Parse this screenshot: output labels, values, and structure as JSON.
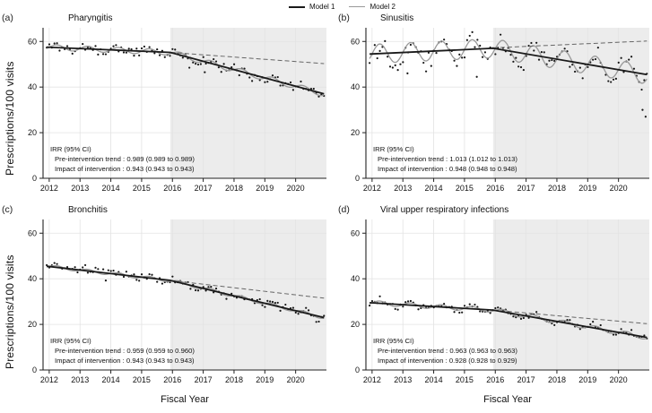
{
  "labels": {
    "y_axis": "Prescriptions/100 visits",
    "x_axis": "Fiscal Year"
  },
  "legend": {
    "items": [
      {
        "label": "Model 1",
        "color": "#1a1a1a",
        "thickness": 2
      },
      {
        "label": "Model 2",
        "color": "#999999",
        "thickness": 1.5
      }
    ]
  },
  "style": {
    "shade": "#ececec",
    "grid": "#e3e3e3",
    "axis": "#222222",
    "dot": "#161616",
    "model1": "#1a1a1a",
    "model2": "#999999",
    "dashed": "#666666"
  },
  "panels": [
    {
      "letter": "(a)",
      "title": "Pharyngitis",
      "irr_header": "IRR (95% CI)",
      "trend_line": "Pre-intervention trend : 0.989 (0.989 to 0.989)",
      "impact_line": "Impact of intervention : 0.943 (0.943 to 0.943)"
    },
    {
      "letter": "(b)",
      "title": "Sinusitis",
      "irr_header": "IRR (95% CI)",
      "trend_line": "Pre-intervention trend : 1.013 (1.012 to 1.013)",
      "impact_line": "Impact of intervention : 0.948 (0.948 to 0.948)"
    },
    {
      "letter": "(c)",
      "title": "Bronchitis",
      "irr_header": "IRR (95% CI)",
      "trend_line": "Pre-intervention trend : 0.959 (0.959 to 0.960)",
      "impact_line": "Impact of intervention : 0.943 (0.943 to 0.943)"
    },
    {
      "letter": "(d)",
      "title": "Viral upper respiratory infections",
      "irr_header": "IRR (95% CI)",
      "trend_line": "Pre-intervention trend : 0.963 (0.963 to 0.963)",
      "impact_line": "Impact of intervention : 0.928 (0.928 to 0.929)"
    }
  ],
  "chart_data": [
    {
      "type": "scatter",
      "title": "Pharyngitis",
      "xlabel": "Fiscal Year",
      "ylabel": "Prescriptions/100 visits",
      "x_ticks": [
        2012,
        2013,
        2014,
        2015,
        2016,
        2017,
        2018,
        2019,
        2020
      ],
      "y_ticks": [
        0,
        20,
        40,
        60
      ],
      "x_range": [
        2011.8,
        2021.0
      ],
      "ylim": [
        0,
        66
      ],
      "intervention_start": 2015.93,
      "series": {
        "model1_trend_points": [
          [
            2011.92,
            57.5
          ],
          [
            2015.93,
            55.2
          ],
          [
            2020.92,
            37.0
          ]
        ],
        "counterfactual_points": [
          [
            2015.93,
            55.2
          ],
          [
            2020.92,
            50.3
          ]
        ],
        "seasonal_amplitude": 1.2,
        "scatter_noise_sd": 1.3,
        "scatter_seed": 11,
        "scatter_outliers": [
          [
            2016.55,
            48.5
          ],
          [
            2017.05,
            46.5
          ]
        ]
      }
    },
    {
      "type": "scatter",
      "title": "Sinusitis",
      "xlabel": "Fiscal Year",
      "ylabel": "Prescriptions/100 visits",
      "x_ticks": [
        2012,
        2013,
        2014,
        2015,
        2016,
        2017,
        2018,
        2019,
        2020
      ],
      "y_ticks": [
        0,
        20,
        40,
        60
      ],
      "x_range": [
        2011.8,
        2021.0
      ],
      "ylim": [
        0,
        66
      ],
      "intervention_start": 2015.93,
      "series": {
        "model1_trend_points": [
          [
            2011.92,
            54.5
          ],
          [
            2015.93,
            57.0
          ],
          [
            2020.92,
            45.5
          ]
        ],
        "counterfactual_points": [
          [
            2015.93,
            57.2
          ],
          [
            2020.92,
            60.2
          ]
        ],
        "seasonal_amplitude": 4.2,
        "scatter_noise_sd": 2.3,
        "scatter_seed": 22,
        "scatter_outliers": [
          [
            2013.15,
            46.0
          ],
          [
            2015.4,
            44.5
          ],
          [
            2020.78,
            30.0
          ],
          [
            2020.88,
            27.0
          ]
        ]
      }
    },
    {
      "type": "scatter",
      "title": "Bronchitis",
      "xlabel": "Fiscal Year",
      "ylabel": "Prescriptions/100 visits",
      "x_ticks": [
        2012,
        2013,
        2014,
        2015,
        2016,
        2017,
        2018,
        2019,
        2020
      ],
      "y_ticks": [
        0,
        20,
        40,
        60
      ],
      "x_range": [
        2011.8,
        2021.0
      ],
      "ylim": [
        0,
        66
      ],
      "intervention_start": 2015.93,
      "series": {
        "model1_trend_points": [
          [
            2011.92,
            45.5
          ],
          [
            2015.93,
            39.3
          ],
          [
            2020.92,
            23.0
          ]
        ],
        "counterfactual_points": [
          [
            2015.93,
            39.3
          ],
          [
            2020.92,
            31.5
          ]
        ],
        "seasonal_amplitude": 0.7,
        "scatter_noise_sd": 1.0,
        "scatter_seed": 33,
        "scatter_outliers": []
      }
    },
    {
      "type": "scatter",
      "title": "Viral upper respiratory infections",
      "xlabel": "Fiscal Year",
      "ylabel": "Prescriptions/100 visits",
      "x_ticks": [
        2012,
        2013,
        2014,
        2015,
        2016,
        2017,
        2018,
        2019,
        2020
      ],
      "y_ticks": [
        0,
        20,
        40,
        60
      ],
      "x_range": [
        2011.8,
        2021.0
      ],
      "ylim": [
        0,
        66
      ],
      "intervention_start": 2015.93,
      "series": {
        "model1_trend_points": [
          [
            2011.92,
            29.5
          ],
          [
            2015.93,
            26.3
          ],
          [
            2020.92,
            14.3
          ]
        ],
        "counterfactual_points": [
          [
            2015.93,
            26.3
          ],
          [
            2020.92,
            20.3
          ]
        ],
        "seasonal_amplitude": 1.0,
        "scatter_noise_sd": 0.9,
        "scatter_seed": 44,
        "scatter_outliers": []
      }
    }
  ]
}
